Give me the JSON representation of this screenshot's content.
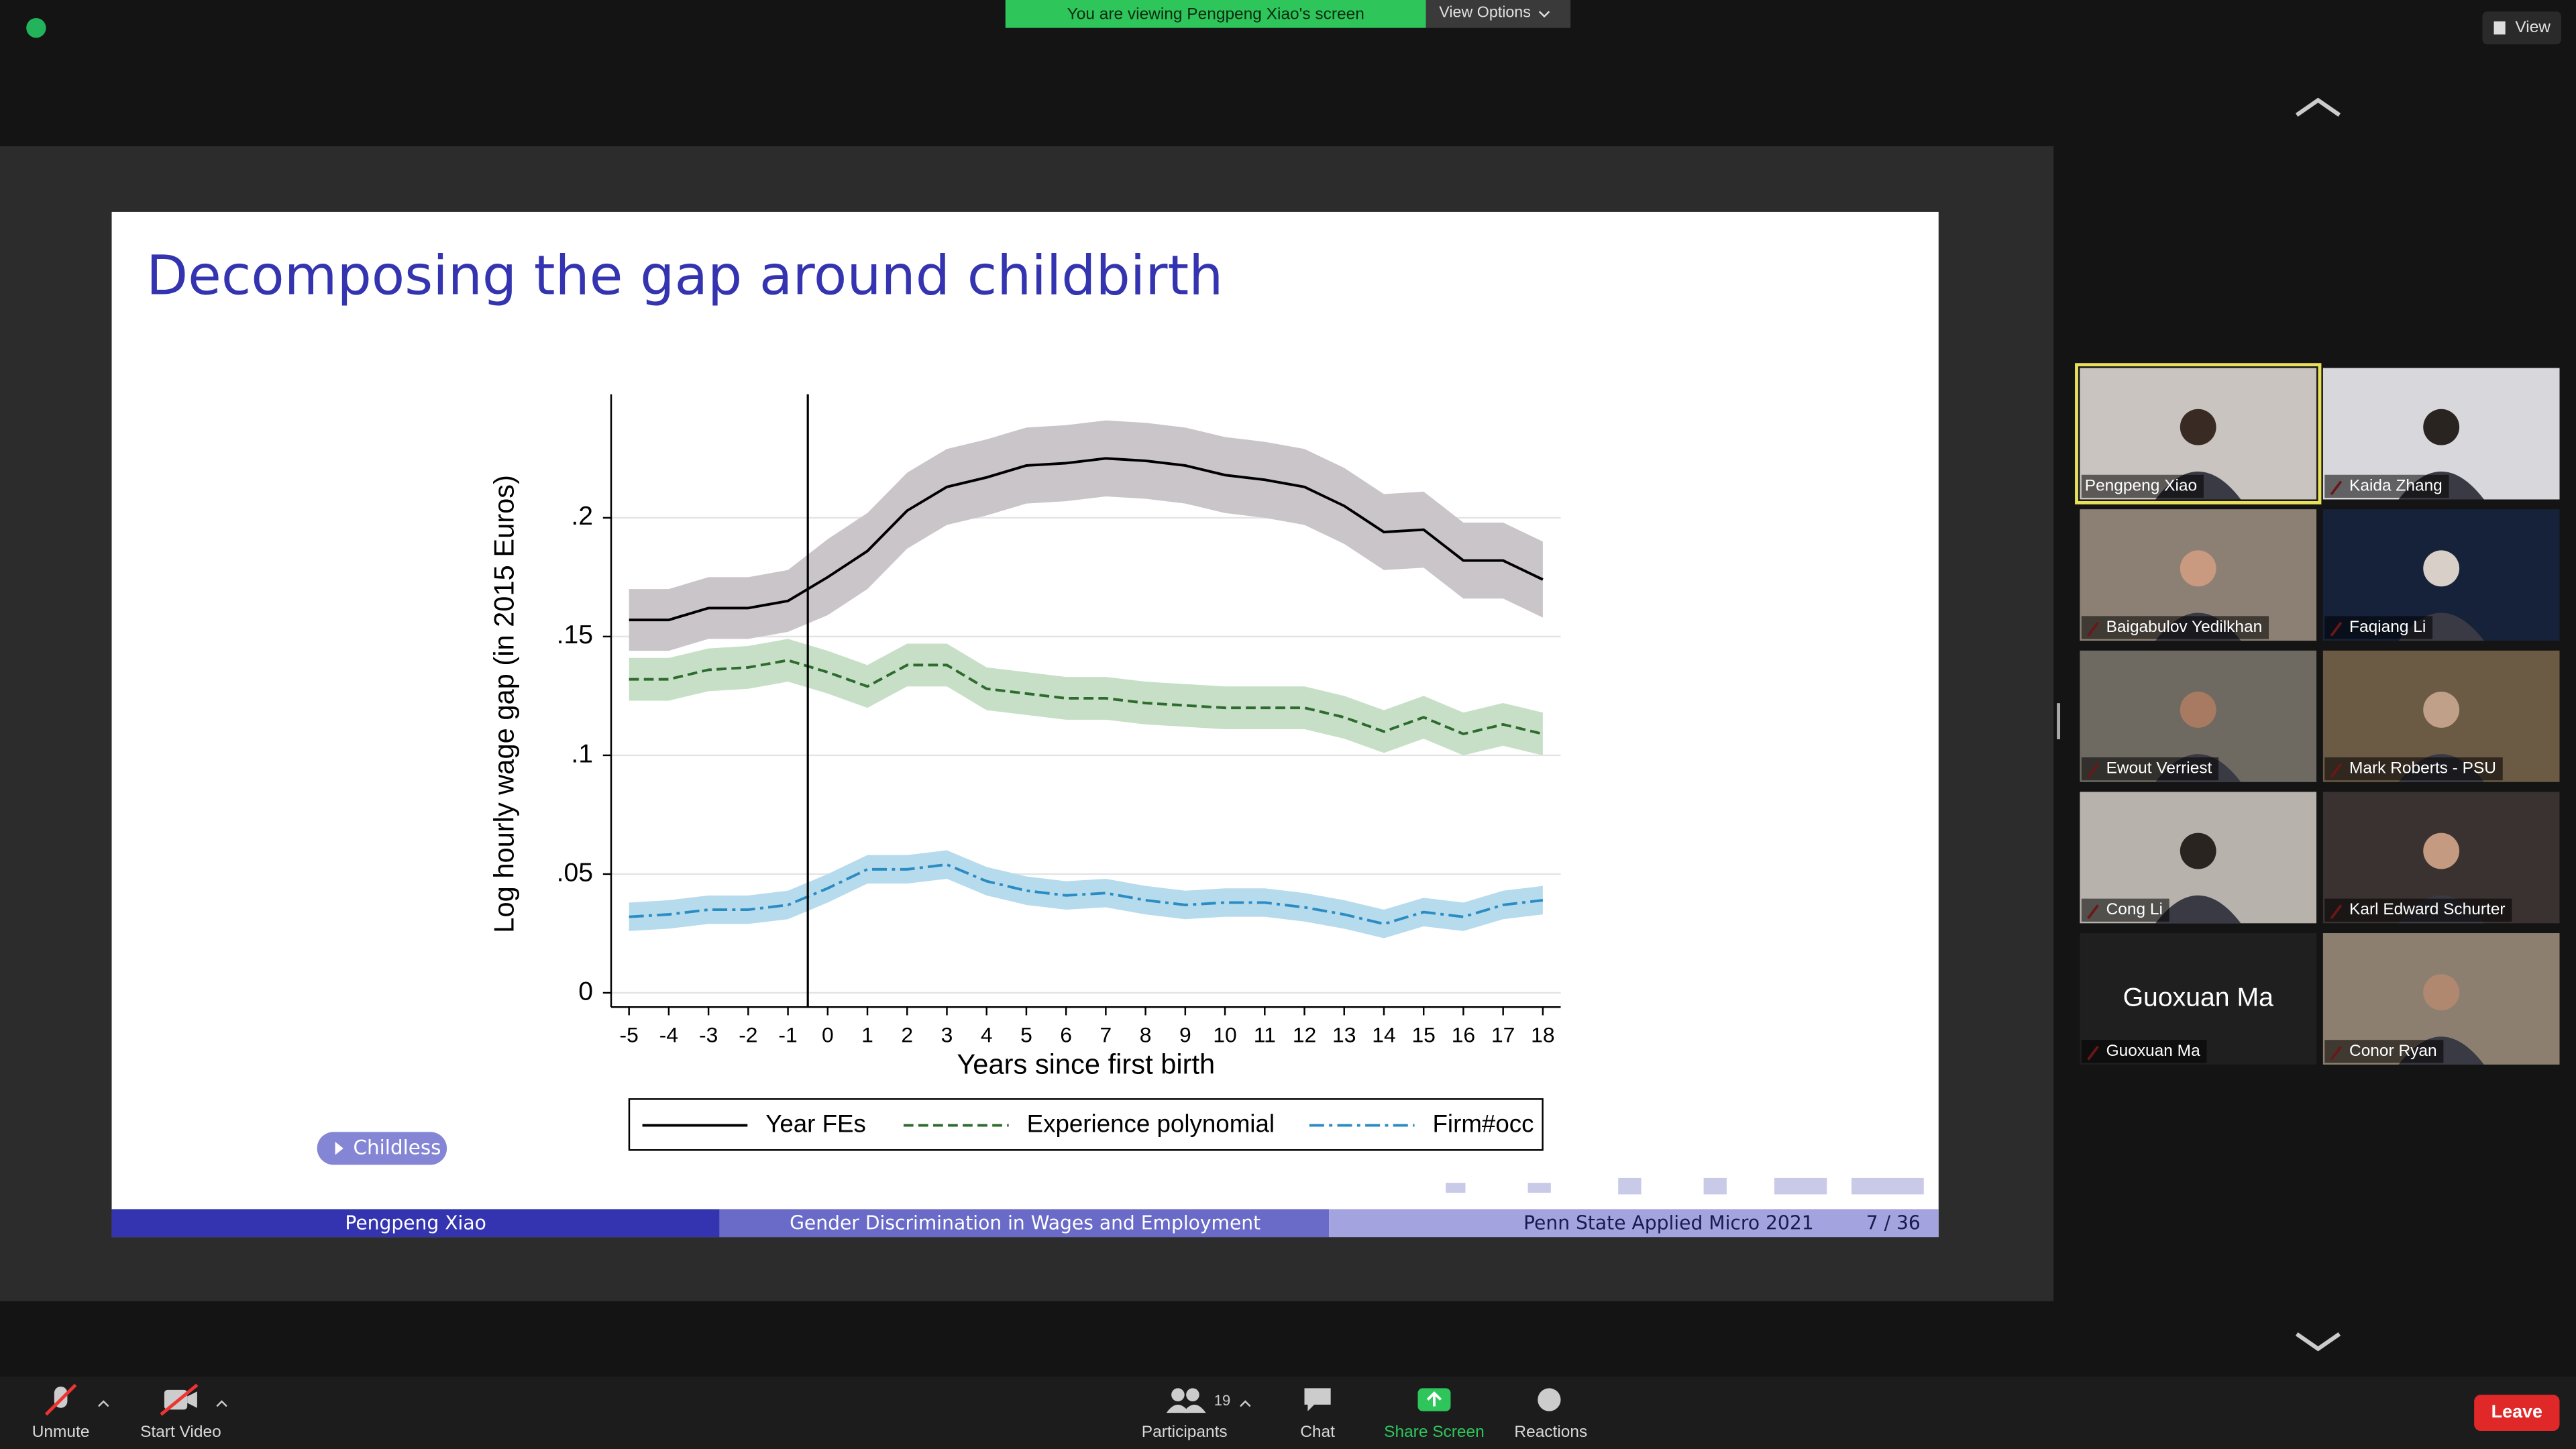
{
  "zoom": {
    "banner": "You are viewing Pengpeng Xiao's screen",
    "view_options": "View Options",
    "view": "View",
    "participants": [
      {
        "name": "Pengpeng Xiao"
      },
      {
        "name": "Kaida Zhang"
      },
      {
        "name": "Baigabulov Yedilkhan"
      },
      {
        "name": "Faqiang Li"
      },
      {
        "name": "Ewout Verriest"
      },
      {
        "name": "Mark Roberts - PSU"
      },
      {
        "name": "Cong Li"
      },
      {
        "name": "Karl Edward Schurter"
      },
      {
        "name": "Guoxuan Ma"
      },
      {
        "name": "Conor Ryan"
      }
    ],
    "toolbar": {
      "unmute": "Unmute",
      "start_video": "Start Video",
      "participants": "Participants",
      "participant_count": "19",
      "chat": "Chat",
      "share_screen": "Share Screen",
      "reactions": "Reactions",
      "leave": "Leave"
    }
  },
  "slide": {
    "title": "Decomposing the gap around childbirth",
    "button": "Childless",
    "footer": {
      "author": "Pengpeng Xiao",
      "talk": "Gender Discrimination in Wages and Employment",
      "venue": "Penn State Applied Micro 2021",
      "page": "7 / 36"
    }
  },
  "chart_data": {
    "type": "line",
    "x_label": "Years since first birth",
    "y_label": "Log hourly wage gap (in 2015 Euros)",
    "x": [
      -5,
      -4,
      -3,
      -2,
      -1,
      0,
      1,
      2,
      3,
      4,
      5,
      6,
      7,
      8,
      9,
      10,
      11,
      12,
      13,
      14,
      15,
      16,
      17,
      18
    ],
    "xlim": [
      -5.45,
      18.45
    ],
    "xticks": [
      -5,
      -4,
      -3,
      -2,
      -1,
      0,
      1,
      2,
      3,
      4,
      5,
      6,
      7,
      8,
      9,
      10,
      11,
      12,
      13,
      14,
      15,
      16,
      17,
      18
    ],
    "ylim": [
      -0.006,
      0.252
    ],
    "yticks": [
      0,
      {
        "value": 0.05,
        "label": ".05"
      },
      {
        "value": 0.1,
        "label": ".1"
      },
      {
        "value": 0.15,
        "label": ".15"
      },
      {
        "value": 0.2,
        "label": ".2"
      }
    ],
    "grid": true,
    "vline": -0.5,
    "legend": "bottom",
    "series": [
      {
        "name": "Year FEs",
        "color": "#000000",
        "band_color": "#c9c5c9",
        "dash": "solid",
        "values": [
          0.157,
          0.157,
          0.162,
          0.162,
          0.165,
          0.175,
          0.186,
          0.203,
          0.213,
          0.217,
          0.222,
          0.223,
          0.225,
          0.224,
          0.222,
          0.218,
          0.216,
          0.213,
          0.205,
          0.194,
          0.195,
          0.182,
          0.182,
          0.174
        ],
        "lower": [
          0.144,
          0.144,
          0.149,
          0.149,
          0.152,
          0.159,
          0.17,
          0.187,
          0.197,
          0.201,
          0.206,
          0.207,
          0.209,
          0.208,
          0.206,
          0.202,
          0.2,
          0.197,
          0.189,
          0.178,
          0.179,
          0.166,
          0.166,
          0.158
        ],
        "upper": [
          0.17,
          0.17,
          0.175,
          0.175,
          0.178,
          0.191,
          0.202,
          0.219,
          0.229,
          0.233,
          0.238,
          0.239,
          0.241,
          0.24,
          0.238,
          0.234,
          0.232,
          0.229,
          0.221,
          0.21,
          0.211,
          0.198,
          0.198,
          0.19
        ]
      },
      {
        "name": "Experience polynomial",
        "color": "#2e6b2e",
        "band_color": "#c6dfc6",
        "dash": "dash",
        "values": [
          0.132,
          0.132,
          0.136,
          0.137,
          0.14,
          0.135,
          0.129,
          0.138,
          0.138,
          0.128,
          0.126,
          0.124,
          0.124,
          0.122,
          0.121,
          0.12,
          0.12,
          0.12,
          0.116,
          0.11,
          0.116,
          0.109,
          0.113,
          0.109
        ],
        "lower": [
          0.123,
          0.123,
          0.127,
          0.128,
          0.131,
          0.126,
          0.12,
          0.129,
          0.129,
          0.119,
          0.117,
          0.115,
          0.115,
          0.113,
          0.112,
          0.111,
          0.111,
          0.111,
          0.107,
          0.101,
          0.107,
          0.1,
          0.104,
          0.1
        ],
        "upper": [
          0.141,
          0.141,
          0.145,
          0.146,
          0.149,
          0.144,
          0.138,
          0.147,
          0.147,
          0.137,
          0.135,
          0.133,
          0.133,
          0.131,
          0.13,
          0.129,
          0.129,
          0.129,
          0.125,
          0.119,
          0.125,
          0.118,
          0.122,
          0.118
        ]
      },
      {
        "name": "Firm#occ",
        "color": "#2b8cc4",
        "band_color": "#b6dbec",
        "dash": "dashdot",
        "values": [
          0.032,
          0.033,
          0.035,
          0.035,
          0.037,
          0.044,
          0.052,
          0.052,
          0.054,
          0.047,
          0.043,
          0.041,
          0.042,
          0.039,
          0.037,
          0.038,
          0.038,
          0.036,
          0.033,
          0.029,
          0.034,
          0.032,
          0.037,
          0.039
        ],
        "lower": [
          0.026,
          0.027,
          0.029,
          0.029,
          0.031,
          0.038,
          0.046,
          0.046,
          0.048,
          0.041,
          0.037,
          0.035,
          0.036,
          0.033,
          0.031,
          0.032,
          0.032,
          0.03,
          0.027,
          0.023,
          0.028,
          0.026,
          0.031,
          0.033
        ],
        "upper": [
          0.038,
          0.039,
          0.041,
          0.041,
          0.043,
          0.05,
          0.058,
          0.058,
          0.06,
          0.053,
          0.049,
          0.047,
          0.048,
          0.045,
          0.043,
          0.044,
          0.044,
          0.042,
          0.039,
          0.035,
          0.04,
          0.038,
          0.043,
          0.045
        ]
      }
    ]
  }
}
